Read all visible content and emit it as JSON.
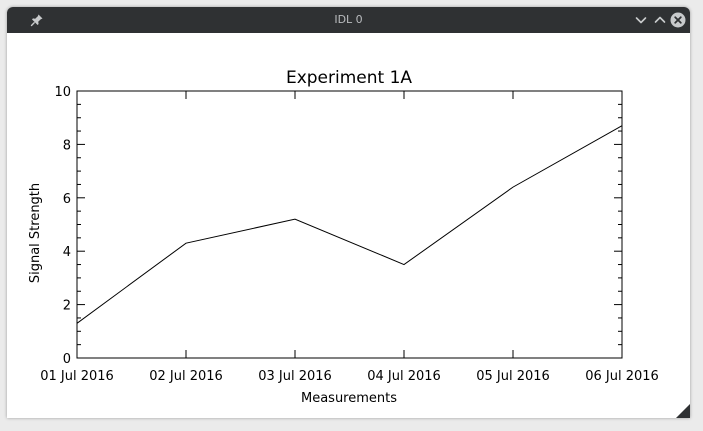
{
  "window": {
    "title": "IDL 0"
  },
  "icons": {
    "pin": "pin-icon",
    "minimize": "chevron-down-icon",
    "maximize": "chevron-up-icon",
    "close": "close-icon",
    "resize": "resize-grip-icon"
  },
  "chart_data": {
    "type": "line",
    "title": "Experiment 1A",
    "xlabel": "Measurements",
    "ylabel": "Signal Strength",
    "x": [
      "01 Jul 2016",
      "02 Jul 2016",
      "03 Jul 2016",
      "04 Jul 2016",
      "05 Jul 2016",
      "06 Jul 2016"
    ],
    "values": [
      1.3,
      4.3,
      5.2,
      3.5,
      6.4,
      8.7
    ],
    "ylim": [
      0,
      10
    ],
    "yticks": [
      0,
      2,
      4,
      6,
      8,
      10
    ],
    "ytick_labels": [
      "0",
      "2",
      "4",
      "6",
      "8",
      "10"
    ],
    "grid": false,
    "line_color": "#000000"
  }
}
